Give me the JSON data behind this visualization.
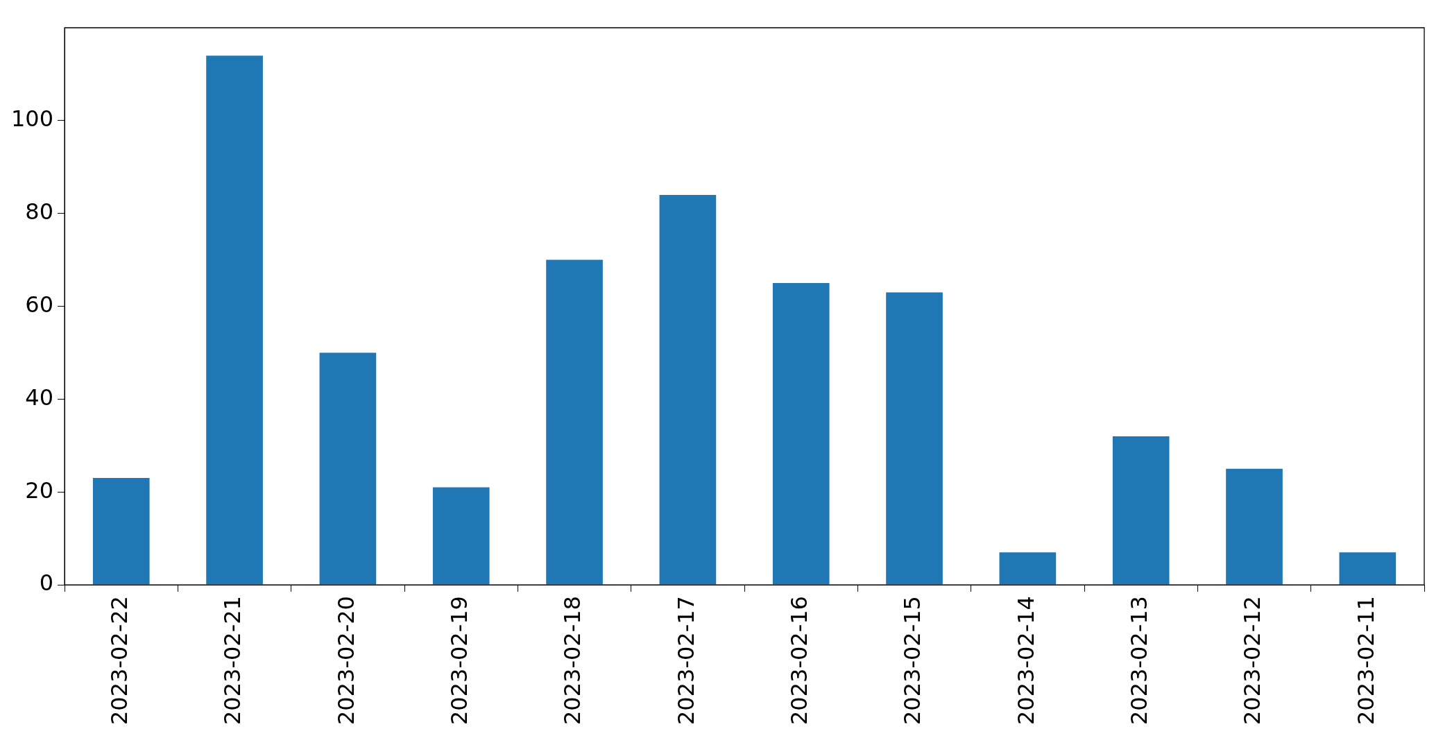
{
  "chart_data": {
    "type": "bar",
    "categories": [
      "2023-02-22",
      "2023-02-21",
      "2023-02-20",
      "2023-02-19",
      "2023-02-18",
      "2023-02-17",
      "2023-02-16",
      "2023-02-15",
      "2023-02-14",
      "2023-02-13",
      "2023-02-12",
      "2023-02-11"
    ],
    "values": [
      23,
      114,
      50,
      21,
      70,
      84,
      65,
      63,
      7,
      32,
      25,
      7
    ],
    "color": "#1f77b4",
    "ylim": [
      0,
      120
    ],
    "yticks": [
      0,
      20,
      40,
      60,
      80,
      100
    ],
    "grid": false,
    "legend": false
  }
}
